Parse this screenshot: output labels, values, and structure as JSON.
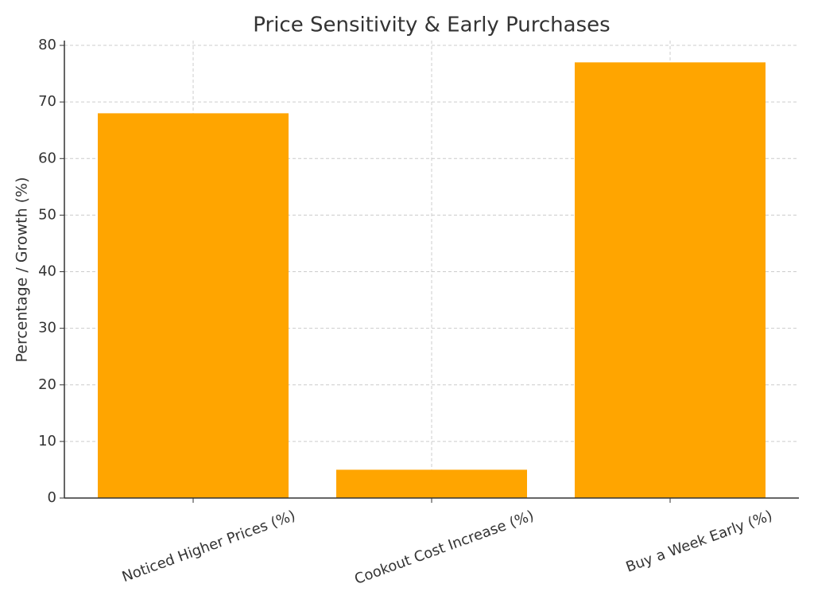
{
  "chart_data": {
    "type": "bar",
    "title": "Price Sensitivity & Early Purchases",
    "y_label": "Percentage / Growth (%)",
    "categories": [
      "Noticed Higher Prices (%)",
      "Cookout Cost Increase (%)",
      "Buy a Week Early (%)"
    ],
    "values": [
      68,
      5,
      77
    ],
    "color": "#ffa500",
    "ylim": [
      0,
      80.85
    ],
    "yticks": [
      0,
      10,
      20,
      30,
      40,
      50,
      60,
      70,
      80
    ],
    "grid": true
  }
}
